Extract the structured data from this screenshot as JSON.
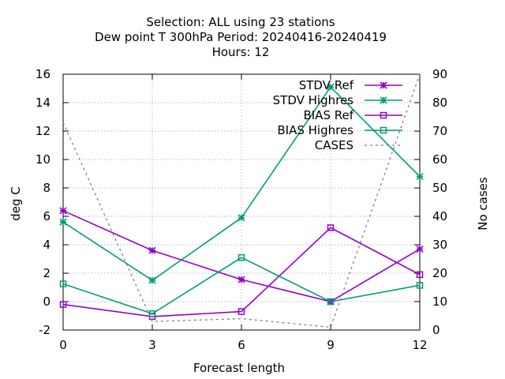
{
  "chart_data": {
    "type": "line",
    "title": [
      "Selection: ALL using    23 stations",
      "Dew point T 300hPa   Period: 20240416-20240419",
      "Hours:  12"
    ],
    "xlabel": "Forecast length",
    "ylabel": "deg C",
    "y2label": "No cases",
    "x": [
      0,
      3,
      6,
      9,
      12
    ],
    "xlim": [
      0,
      12
    ],
    "ylim": [
      -2,
      16
    ],
    "y2lim": [
      0,
      90
    ],
    "xticks": [
      0,
      3,
      6,
      9,
      12
    ],
    "yticks": [
      -2,
      0,
      2,
      4,
      6,
      8,
      10,
      12,
      14,
      16
    ],
    "y2ticks": [
      0,
      10,
      20,
      30,
      40,
      50,
      60,
      70,
      80,
      90
    ],
    "grid": true,
    "legend_position": "top-right",
    "series": [
      {
        "name": "STDV Ref",
        "axis": "y",
        "color": "#9400d3",
        "marker": "star",
        "values": [
          6.4,
          3.6,
          1.55,
          0.0,
          3.7
        ]
      },
      {
        "name": "STDV Highres",
        "axis": "y",
        "color": "#009e73",
        "marker": "star",
        "values": [
          5.6,
          1.5,
          5.9,
          15.1,
          8.8
        ]
      },
      {
        "name": "BIAS Ref",
        "axis": "y",
        "color": "#9400d3",
        "marker": "square",
        "values": [
          -0.2,
          -1.05,
          -0.7,
          5.2,
          1.9
        ]
      },
      {
        "name": "BIAS Highres",
        "axis": "y",
        "color": "#009e73",
        "marker": "square",
        "values": [
          1.25,
          -0.85,
          3.1,
          0.0,
          1.15
        ]
      },
      {
        "name": "CASES",
        "axis": "y2",
        "color": "#808080",
        "marker": "none",
        "dash": true,
        "values": [
          73,
          3,
          4,
          1,
          90
        ]
      }
    ]
  }
}
